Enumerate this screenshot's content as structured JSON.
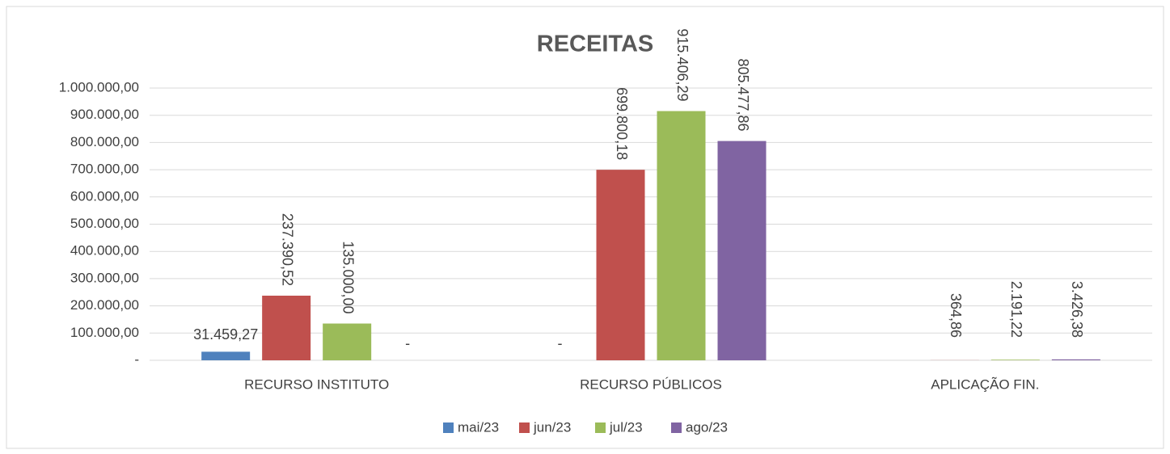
{
  "chart_data": {
    "type": "bar",
    "title": "RECEITAS",
    "categories": [
      "RECURSO INSTITUTO",
      "RECURSO PÚBLICOS",
      "APLICAÇÃO FIN."
    ],
    "series": [
      {
        "name": "mai/23",
        "color": "#4f81bd",
        "values": [
          31459.27,
          0,
          null
        ],
        "value_labels": [
          "31.459,27",
          "-",
          null
        ]
      },
      {
        "name": "jun/23",
        "color": "#c0504d",
        "values": [
          237390.52,
          699800.18,
          364.86
        ],
        "value_labels": [
          "237.390,52",
          "699.800,18",
          "364,86"
        ]
      },
      {
        "name": "jul/23",
        "color": "#9bbb59",
        "values": [
          135000,
          915406.29,
          2191.22
        ],
        "value_labels": [
          "135.000,00",
          "915.406,29",
          "2.191,22"
        ]
      },
      {
        "name": "ago/23",
        "color": "#8064a2",
        "values": [
          0,
          805477.86,
          3426.38
        ],
        "value_labels": [
          "-",
          "805.477,86",
          "3.426,38"
        ]
      }
    ],
    "ylim": [
      0,
      1000000
    ],
    "yticks": [
      {
        "value": 0,
        "label": "-"
      },
      {
        "value": 100000,
        "label": "100.000,00"
      },
      {
        "value": 200000,
        "label": "200.000,00"
      },
      {
        "value": 300000,
        "label": "300.000,00"
      },
      {
        "value": 400000,
        "label": "400.000,00"
      },
      {
        "value": 500000,
        "label": "500.000,00"
      },
      {
        "value": 600000,
        "label": "600.000,00"
      },
      {
        "value": 700000,
        "label": "700.000,00"
      },
      {
        "value": 800000,
        "label": "800.000,00"
      },
      {
        "value": 900000,
        "label": "900.000,00"
      },
      {
        "value": 1000000,
        "label": "1.000.000,00"
      }
    ],
    "grid": true,
    "legend": "bottom"
  }
}
